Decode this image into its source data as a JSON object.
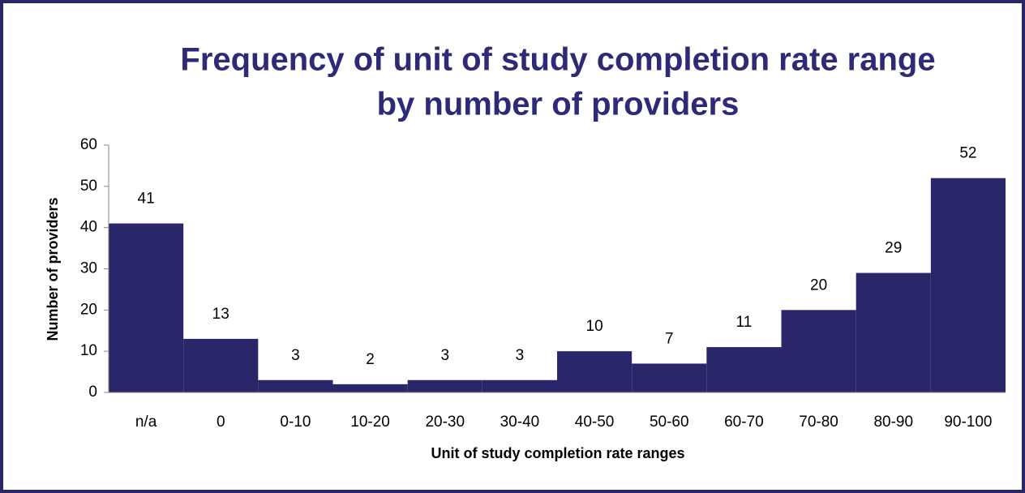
{
  "chart_data": {
    "type": "bar",
    "title": [
      "Frequency of unit of study completion rate range",
      "by number of providers"
    ],
    "xlabel": "Unit of study completion rate ranges",
    "ylabel": "Number of providers",
    "categories": [
      "n/a",
      "0",
      "0-10",
      "10-20",
      "20-30",
      "30-40",
      "40-50",
      "50-60",
      "60-70",
      "70-80",
      "80-90",
      "90-100"
    ],
    "values": [
      41,
      13,
      3,
      2,
      3,
      3,
      10,
      7,
      11,
      20,
      29,
      52
    ],
    "color": "#29266a",
    "ylim": [
      0,
      60
    ],
    "yticks": [
      0,
      10,
      20,
      30,
      40,
      50,
      60
    ],
    "grid": false
  }
}
